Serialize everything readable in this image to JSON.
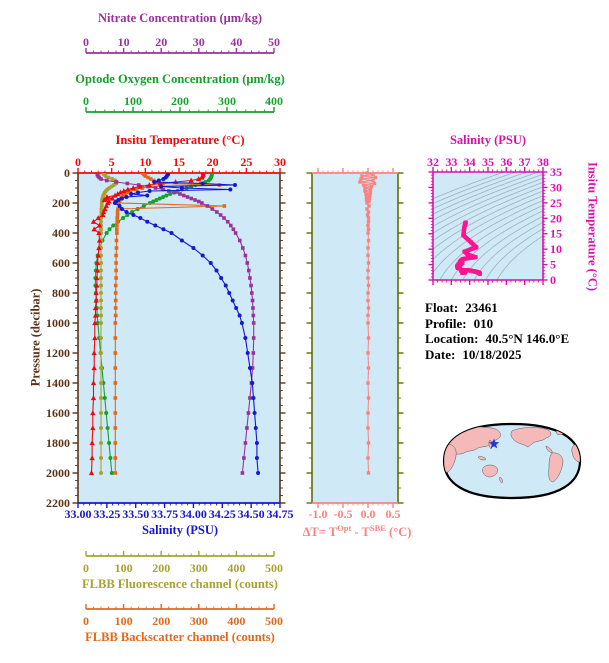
{
  "info": {
    "lines": [
      {
        "label": "Float:",
        "value": "23461"
      },
      {
        "label": "Profile:",
        "value": "010"
      },
      {
        "label": "Location:",
        "value": "40.5°N  146.0°E"
      },
      {
        "label": "Date:",
        "value": "10/18/2025"
      }
    ]
  },
  "map": {
    "marker_color": "#2233dd",
    "land_color": "#f6b9b9",
    "ocean_color": "#cfe9f6",
    "outline_color": "#000000"
  },
  "chart_data": [
    {
      "id": "profile-plot",
      "type": "line",
      "plot_bg": "#cfe9f6",
      "y_axis": {
        "label": "Pressure (decibar)",
        "range": [
          0,
          2200
        ],
        "tick_step": 200,
        "minor_step": 50,
        "color": "#5c3317",
        "ticks": [
          "0",
          "200",
          "400",
          "600",
          "800",
          "1000",
          "1200",
          "1400",
          "1600",
          "1800",
          "2000",
          "2200"
        ]
      },
      "x_axes": [
        {
          "id": "nitrate",
          "label": "Nitrate Concentration (μm/kg)",
          "range": [
            0,
            50
          ],
          "minor_step": 2,
          "color": "#993399",
          "ticks": [
            "0",
            "10",
            "20",
            "30",
            "40",
            "50"
          ]
        },
        {
          "id": "oxygen",
          "label": "Optode Oxygen Concentration (μm/kg)",
          "range": [
            0,
            400
          ],
          "minor_step": 20,
          "color": "#16a02c",
          "ticks": [
            "0",
            "100",
            "200",
            "300",
            "400"
          ]
        },
        {
          "id": "temperature",
          "label": "Insitu Temperature (°C)",
          "range": [
            0,
            30
          ],
          "minor_step": 1,
          "color": "#ee0a0a",
          "ticks": [
            "0",
            "5",
            "10",
            "15",
            "20",
            "25",
            "30"
          ]
        },
        {
          "id": "salinity",
          "label": "Salinity (PSU)",
          "range": [
            33.0,
            34.75
          ],
          "minor_step": 0.05,
          "color": "#1717cf",
          "ticks": [
            "33.00",
            "33.25",
            "33.50",
            "33.75",
            "34.00",
            "34.25",
            "34.50",
            "34.75"
          ]
        },
        {
          "id": "fluorescence",
          "label": "FLBB Fluorescence channel (counts)",
          "range": [
            0,
            500
          ],
          "minor_step": 20,
          "color": "#a8a232",
          "ticks": [
            "0",
            "100",
            "200",
            "300",
            "400",
            "500"
          ]
        },
        {
          "id": "backscatter",
          "label": "FLBB Backscatter channel (counts)",
          "range": [
            0,
            500
          ],
          "minor_step": 20,
          "color": "#e2691a",
          "ticks": [
            "0",
            "100",
            "200",
            "300",
            "400",
            "500"
          ]
        }
      ],
      "pressure": [
        0,
        10,
        20,
        30,
        40,
        50,
        60,
        70,
        80,
        90,
        100,
        110,
        120,
        130,
        140,
        150,
        160,
        170,
        180,
        190,
        200,
        220,
        240,
        260,
        280,
        300,
        325,
        350,
        375,
        400,
        450,
        500,
        550,
        600,
        650,
        700,
        750,
        800,
        850,
        900,
        950,
        1000,
        1100,
        1200,
        1300,
        1400,
        1500,
        1600,
        1700,
        1800,
        1900,
        2000
      ],
      "series": [
        {
          "axis": "oxygen",
          "marker": "circle",
          "values": [
            268,
            268,
            267,
            266,
            264,
            261,
            254,
            244,
            233,
            224,
            214,
            204,
            195,
            187,
            179,
            171,
            164,
            157,
            150,
            143,
            136,
            123,
            110,
            98,
            88,
            79,
            68,
            58,
            50,
            44,
            35,
            29,
            25,
            22,
            21,
            20,
            20,
            21,
            22,
            23,
            24,
            25,
            28,
            31,
            34,
            37,
            40,
            43,
            46,
            49,
            52,
            55
          ]
        },
        {
          "axis": "fluorescence",
          "marker": "circle",
          "values": [
            46,
            48,
            52,
            60,
            70,
            78,
            82,
            80,
            74,
            68,
            62,
            57,
            53,
            50,
            48,
            46,
            45,
            44,
            43,
            43,
            42,
            42,
            41,
            41,
            41,
            40,
            40,
            40,
            40,
            40,
            40,
            40,
            40,
            40,
            40,
            40,
            40,
            40,
            40,
            40,
            40,
            40,
            40,
            40,
            40,
            40,
            40,
            40,
            40,
            40,
            40,
            40
          ]
        },
        {
          "axis": "backscatter",
          "marker": "square",
          "values": [
            150,
            154,
            158,
            165,
            172,
            180,
            190,
            205,
            355,
            168,
            150,
            132,
            118,
            110,
            104,
            100,
            96,
            93,
            90,
            88,
            87,
            368,
            85,
            84,
            84,
            83,
            83,
            82,
            82,
            82,
            81,
            81,
            80,
            80,
            80,
            80,
            79,
            79,
            79,
            79,
            79,
            78,
            78,
            78,
            78,
            78,
            78,
            78,
            78,
            78,
            78,
            78
          ]
        },
        {
          "axis": "nitrate",
          "marker": "square",
          "values": [
            3.0,
            3.0,
            3.2,
            3.5,
            4.0,
            5.5,
            8.0,
            11.0,
            14.0,
            16.5,
            18.5,
            20.5,
            22.0,
            23.5,
            25.0,
            26.0,
            27.0,
            28.0,
            29.0,
            30.0,
            30.8,
            32.3,
            33.6,
            34.8,
            35.8,
            36.7,
            37.7,
            38.5,
            39.2,
            39.8,
            40.9,
            41.7,
            42.4,
            42.9,
            43.3,
            43.6,
            43.9,
            44.1,
            44.3,
            44.4,
            44.5,
            44.6,
            44.6,
            44.5,
            44.3,
            44.0,
            43.6,
            43.2,
            42.8,
            42.4,
            42.0,
            41.6
          ]
        },
        {
          "axis": "temperature",
          "marker": "triangle",
          "values": [
            18.6,
            18.6,
            18.5,
            18.4,
            17.9,
            16.8,
            14.5,
            12.2,
            10.6,
            9.2,
            8.2,
            7.4,
            6.8,
            6.3,
            5.9,
            5.5,
            4.3,
            5.1,
            3.9,
            4.6,
            4.4,
            4.2,
            4.0,
            3.8,
            3.7,
            3.0,
            2.3,
            3.2,
            2.4,
            3.1,
            3.2,
            3.1,
            3.0,
            2.9,
            2.9,
            2.8,
            2.8,
            2.7,
            2.7,
            2.6,
            2.6,
            2.5,
            2.5,
            2.4,
            2.4,
            2.3,
            2.3,
            2.2,
            2.2,
            2.1,
            2.1,
            2.0
          ]
        },
        {
          "axis": "salinity",
          "marker": "circle",
          "values": [
            33.78,
            33.78,
            33.77,
            33.76,
            33.74,
            33.7,
            33.66,
            34.08,
            34.36,
            33.72,
            33.9,
            34.32,
            33.62,
            33.52,
            33.46,
            33.6,
            33.42,
            33.38,
            33.35,
            33.33,
            33.32,
            33.36,
            33.38,
            33.42,
            33.48,
            33.54,
            33.6,
            33.67,
            33.74,
            33.81,
            33.9,
            34.0,
            34.08,
            34.15,
            34.2,
            34.24,
            34.28,
            34.31,
            34.34,
            34.37,
            34.4,
            34.42,
            34.45,
            34.47,
            34.49,
            34.51,
            34.52,
            34.53,
            34.54,
            34.55,
            34.55,
            34.56
          ]
        }
      ]
    },
    {
      "id": "delta-t-plot",
      "type": "line",
      "plot_bg": "#cfe9f6",
      "frame_color": "#606e00",
      "x_axis": {
        "label_parts": [
          "ΔT= T",
          "Opt",
          " - T",
          "SBE",
          " (°C)"
        ],
        "range": [
          -1.0,
          0.5
        ],
        "minor_step": 0.1,
        "color": "#f98380",
        "ticks": [
          "-1.0",
          "-0.5",
          "0.0",
          "0.5"
        ]
      },
      "y_axis": {
        "range": [
          0,
          2200
        ],
        "tick_step": 200,
        "minor_step": 100
      },
      "pressure": [
        0,
        10,
        20,
        30,
        40,
        50,
        60,
        70,
        80,
        90,
        100,
        110,
        120,
        130,
        140,
        150,
        160,
        170,
        180,
        190,
        200,
        220,
        240,
        260,
        280,
        300,
        325,
        350,
        375,
        400,
        450,
        500,
        550,
        600,
        650,
        700,
        750,
        800,
        850,
        900,
        950,
        1000,
        1100,
        1200,
        1300,
        1400,
        1500,
        1600,
        1700,
        1800,
        1900,
        2000
      ],
      "values": [
        -0.02,
        0.1,
        -0.12,
        0.15,
        -0.14,
        0.1,
        -0.16,
        0.13,
        -0.09,
        0.07,
        -0.06,
        0.05,
        -0.06,
        0.05,
        -0.04,
        0.04,
        -0.03,
        0.03,
        -0.03,
        0.02,
        -0.02,
        0.02,
        -0.02,
        0.01,
        -0.01,
        0.01,
        0.01,
        0.0,
        0.01,
        0.0,
        0.01,
        0.0,
        0.0,
        0.01,
        0.0,
        0.0,
        0.01,
        0.0,
        0.0,
        0.01,
        0.0,
        0.0,
        0.01,
        0.0,
        0.01,
        0.0,
        0.01,
        0.0,
        0.0,
        0.01,
        0.0,
        0.01
      ]
    },
    {
      "id": "ts-plot",
      "type": "scatter",
      "plot_bg": "#cfe9f6",
      "x_axis": {
        "label": "Salinity (PSU)",
        "range": [
          32,
          38
        ],
        "minor_step": 0.25,
        "color": "#d911ac",
        "ticks": [
          "32",
          "33",
          "34",
          "35",
          "36",
          "37",
          "38"
        ]
      },
      "y_axis": {
        "label": "Insitu Temperature (°C)",
        "range": [
          0,
          35
        ],
        "minor_step": 1,
        "color": "#d911ac",
        "ticks": [
          "0",
          "5",
          "10",
          "15",
          "20",
          "25",
          "30",
          "35"
        ]
      },
      "line_color": "#ff1490",
      "contour_color": "#9fb2bd",
      "contour_levels_sigma_theta": [
        20.5,
        28.5,
        0.5
      ],
      "points_source": {
        "chart": "profile-plot",
        "x_series": "salinity",
        "y_series": "temperature"
      }
    }
  ]
}
